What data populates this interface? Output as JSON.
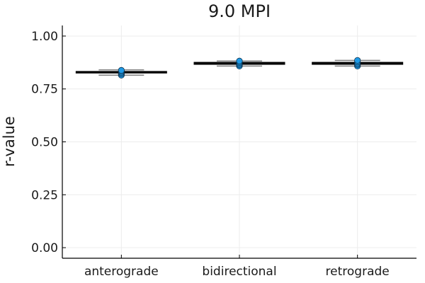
{
  "chart_data": {
    "type": "box",
    "title": "9.0 MPI",
    "xlabel": "",
    "ylabel": "r-value",
    "ylim": [
      -0.05,
      1.05
    ],
    "yticks": [
      0.0,
      0.25,
      0.5,
      0.75,
      1.0
    ],
    "ytick_labels": [
      "0.00",
      "0.25",
      "0.50",
      "0.75",
      "1.00"
    ],
    "grid": true,
    "legend": "none",
    "categories": [
      "anterograde",
      "bidirectional",
      "retrograde"
    ],
    "boxes": [
      {
        "category": "anterograde",
        "min": 0.815,
        "q1": 0.825,
        "median": 0.829,
        "q3": 0.833,
        "max": 0.84,
        "points": [
          0.815,
          0.822,
          0.828,
          0.833,
          0.838
        ]
      },
      {
        "category": "bidirectional",
        "min": 0.858,
        "q1": 0.866,
        "median": 0.871,
        "q3": 0.876,
        "max": 0.882,
        "points": [
          0.858,
          0.864,
          0.87,
          0.876,
          0.882
        ]
      },
      {
        "category": "retrograde",
        "min": 0.858,
        "q1": 0.866,
        "median": 0.871,
        "q3": 0.876,
        "max": 0.885,
        "points": [
          0.858,
          0.865,
          0.871,
          0.878,
          0.885
        ]
      }
    ],
    "colors": {
      "point_fill": "#1f9ae6",
      "point_stroke": "#0b2f4a",
      "box_stroke": "#000000",
      "whisker": "#808080",
      "grid": "#ececec"
    }
  }
}
